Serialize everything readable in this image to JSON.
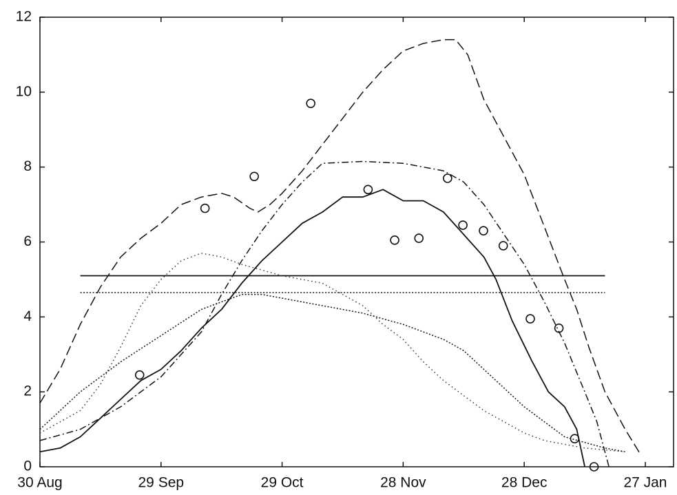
{
  "chart_data": {
    "type": "line",
    "xlim": [
      0,
      157
    ],
    "xticks": [
      {
        "value": 0,
        "label": "30 Aug"
      },
      {
        "value": 30,
        "label": "29 Sep"
      },
      {
        "value": 60,
        "label": "29 Oct"
      },
      {
        "value": 90,
        "label": "28 Nov"
      },
      {
        "value": 120,
        "label": "28 Dec"
      },
      {
        "value": 150,
        "label": "27 Jan"
      }
    ],
    "ylim": [
      0,
      12
    ],
    "yticks": [
      0,
      2,
      4,
      6,
      8,
      10,
      12
    ],
    "series": [
      {
        "color": "#111",
        "style": "dashed",
        "x": [
          0,
          5,
          10,
          15,
          20,
          25,
          30,
          35,
          40,
          45,
          48,
          52,
          54,
          57,
          60,
          65,
          70,
          75,
          80,
          85,
          90,
          95,
          100,
          103,
          106,
          110,
          115,
          120,
          125,
          130,
          133,
          136,
          140,
          145,
          149
        ],
        "values": [
          1.7,
          2.6,
          3.8,
          4.8,
          5.6,
          6.1,
          6.5,
          7.0,
          7.2,
          7.3,
          7.2,
          6.9,
          6.8,
          7.0,
          7.3,
          7.9,
          8.6,
          9.3,
          10.0,
          10.6,
          11.1,
          11.3,
          11.4,
          11.4,
          11.0,
          9.8,
          8.8,
          7.8,
          6.4,
          5.0,
          4.2,
          3.2,
          2.0,
          1.0,
          0.3
        ]
      },
      {
        "color": "#111",
        "style": "dashdot",
        "x": [
          0,
          10,
          20,
          30,
          40,
          45,
          50,
          55,
          60,
          65,
          70,
          80,
          90,
          100,
          105,
          110,
          115,
          120,
          125,
          130,
          135,
          138,
          141
        ],
        "values": [
          0.7,
          1.0,
          1.6,
          2.4,
          3.6,
          4.6,
          5.5,
          6.3,
          7.0,
          7.6,
          8.1,
          8.15,
          8.1,
          7.9,
          7.6,
          7.0,
          6.2,
          5.4,
          4.4,
          3.3,
          2.0,
          1.2,
          0
        ]
      },
      {
        "color": "#111",
        "style": "solid",
        "x": [
          0,
          5,
          10,
          15,
          20,
          25,
          30,
          35,
          40,
          45,
          50,
          55,
          60,
          65,
          70,
          75,
          80,
          85,
          90,
          95,
          100,
          105,
          110,
          113,
          117,
          122,
          126,
          130,
          133,
          135
        ],
        "values": [
          0.4,
          0.5,
          0.8,
          1.3,
          1.8,
          2.3,
          2.6,
          3.1,
          3.7,
          4.2,
          4.9,
          5.5,
          6.0,
          6.5,
          6.8,
          7.2,
          7.2,
          7.4,
          7.1,
          7.1,
          6.8,
          6.2,
          5.6,
          5.0,
          3.9,
          2.8,
          2.0,
          1.6,
          1.0,
          0
        ]
      },
      {
        "color": "#333",
        "style": "dotted",
        "x": [
          0,
          10,
          15,
          20,
          25,
          30,
          35,
          40,
          45,
          50,
          60,
          70,
          80,
          85,
          90,
          95,
          100,
          105,
          110,
          115,
          120,
          125,
          130,
          135,
          145
        ],
        "values": [
          0.9,
          1.5,
          2.2,
          3.2,
          4.3,
          5.0,
          5.5,
          5.7,
          5.6,
          5.4,
          5.1,
          4.9,
          4.3,
          3.8,
          3.4,
          2.8,
          2.3,
          1.9,
          1.5,
          1.2,
          0.9,
          0.7,
          0.6,
          0.5,
          0.4
        ]
      },
      {
        "color": "#111",
        "style": "densedot",
        "x": [
          0,
          10,
          20,
          30,
          40,
          50,
          55,
          60,
          70,
          80,
          90,
          95,
          100,
          105,
          110,
          115,
          120,
          125,
          130,
          140,
          145
        ],
        "values": [
          1.0,
          2.0,
          2.8,
          3.5,
          4.2,
          4.6,
          4.6,
          4.5,
          4.3,
          4.1,
          3.8,
          3.6,
          3.4,
          3.1,
          2.6,
          2.1,
          1.6,
          1.2,
          0.8,
          0.5,
          0.4
        ]
      },
      {
        "color": "#111",
        "style": "solid",
        "x": [
          10,
          140
        ],
        "values": [
          5.1,
          5.1
        ]
      },
      {
        "color": "#111",
        "style": "densedot",
        "x": [
          10,
          140
        ],
        "values": [
          4.65,
          4.65
        ]
      },
      {
        "color": "#111",
        "style": "markers",
        "x": [
          24.7,
          40.9,
          53.1,
          67.1,
          81.3,
          87.9,
          93.9,
          101,
          104.8,
          109.9,
          114.8,
          121.5,
          128.6,
          132.5,
          137.3
        ],
        "values": [
          2.45,
          6.9,
          7.75,
          9.7,
          7.4,
          6.05,
          6.1,
          7.7,
          6.45,
          6.3,
          5.9,
          3.95,
          3.7,
          0.75,
          0
        ]
      }
    ]
  }
}
